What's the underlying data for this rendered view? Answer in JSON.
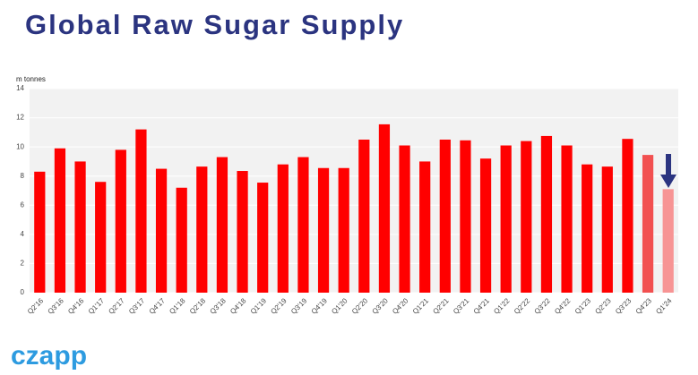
{
  "chart_data": {
    "type": "bar",
    "title": "Global Raw Sugar Supply",
    "y_label": "m tonnes",
    "categories": [
      "Q2'16",
      "Q3'16",
      "Q4'16",
      "Q1'17",
      "Q2'17",
      "Q3'17",
      "Q4'17",
      "Q1'18",
      "Q2'18",
      "Q3'18",
      "Q4'18",
      "Q1'19",
      "Q2'19",
      "Q3'19",
      "Q4'19",
      "Q1'20",
      "Q2'20",
      "Q3'20",
      "Q4'20",
      "Q1'21",
      "Q2'21",
      "Q3'21",
      "Q4'21",
      "Q1'22",
      "Q2'22",
      "Q3'22",
      "Q4'22",
      "Q1'23",
      "Q2'23",
      "Q3'23",
      "Q4'23",
      "Q1'24"
    ],
    "values": [
      8.3,
      9.9,
      9.0,
      7.6,
      9.8,
      11.2,
      8.5,
      7.2,
      8.65,
      9.3,
      8.35,
      7.55,
      8.8,
      9.3,
      8.55,
      8.55,
      10.5,
      11.55,
      10.1,
      9.0,
      10.5,
      10.45,
      9.2,
      10.1,
      10.4,
      10.75,
      10.1,
      8.8,
      8.65,
      10.55,
      9.45,
      7.1
    ],
    "colors": [
      "#ff0000",
      "#ff0000",
      "#ff0000",
      "#ff0000",
      "#ff0000",
      "#ff0000",
      "#ff0000",
      "#ff0000",
      "#ff0000",
      "#ff0000",
      "#ff0000",
      "#ff0000",
      "#ff0000",
      "#ff0000",
      "#ff0000",
      "#ff0000",
      "#ff0000",
      "#ff0000",
      "#ff0000",
      "#ff0000",
      "#ff0000",
      "#ff0000",
      "#ff0000",
      "#ff0000",
      "#ff0000",
      "#ff0000",
      "#ff0000",
      "#ff0000",
      "#ff0000",
      "#ff0000",
      "#f25050",
      "#f79494"
    ],
    "ylim": [
      0,
      14
    ],
    "yticks": [
      0,
      2,
      4,
      6,
      8,
      10,
      12,
      14
    ],
    "grid": true
  },
  "logo": "czapp"
}
